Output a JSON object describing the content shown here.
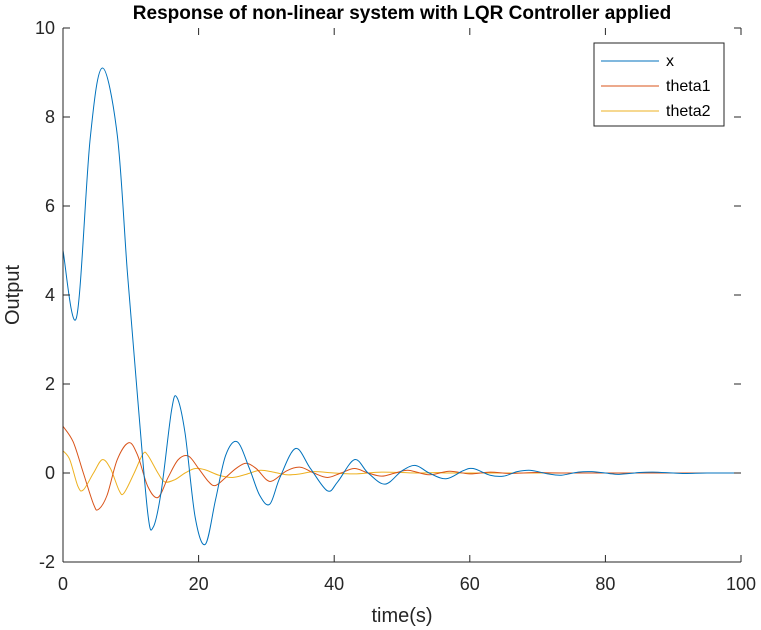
{
  "chart_data": {
    "type": "line",
    "title": "Response of non-linear system with LQR Controller applied",
    "xlabel": "time(s)",
    "ylabel": "Output",
    "xlim": [
      0,
      100
    ],
    "ylim": [
      -2,
      10
    ],
    "xticks": [
      "0",
      "20",
      "40",
      "60",
      "80",
      "100"
    ],
    "yticks": [
      "-2",
      "0",
      "2",
      "4",
      "6",
      "8",
      "10"
    ],
    "grid": false,
    "legend_position": "top-right",
    "series": [
      {
        "name": "x",
        "color": "#0072BD",
        "points": [
          [
            0,
            5.0
          ],
          [
            2,
            3.5
          ],
          [
            4,
            7.5
          ],
          [
            5.8,
            9.1
          ],
          [
            8,
            7.6
          ],
          [
            9.5,
            4.5
          ],
          [
            11,
            1.7
          ],
          [
            12.5,
            -0.9
          ],
          [
            13.3,
            -1.22
          ],
          [
            14.5,
            -0.4
          ],
          [
            16,
            1.4
          ],
          [
            16.8,
            1.7
          ],
          [
            18,
            0.9
          ],
          [
            19.5,
            -1.0
          ],
          [
            21,
            -1.6
          ],
          [
            22.5,
            -0.6
          ],
          [
            24,
            0.4
          ],
          [
            25.7,
            0.7
          ],
          [
            27.5,
            0.1
          ],
          [
            29,
            -0.5
          ],
          [
            30.5,
            -0.7
          ],
          [
            32,
            -0.1
          ],
          [
            34.3,
            0.55
          ],
          [
            36.5,
            0.1
          ],
          [
            39,
            -0.4
          ],
          [
            40.5,
            -0.2
          ],
          [
            43,
            0.3
          ],
          [
            45,
            0.0
          ],
          [
            47.5,
            -0.25
          ],
          [
            50,
            0.05
          ],
          [
            52,
            0.17
          ],
          [
            54,
            0.0
          ],
          [
            56.5,
            -0.13
          ],
          [
            59,
            0.05
          ],
          [
            60.5,
            0.1
          ],
          [
            63,
            -0.05
          ],
          [
            65,
            -0.07
          ],
          [
            67,
            0.03
          ],
          [
            69,
            0.06
          ],
          [
            71.5,
            -0.02
          ],
          [
            73.5,
            -0.05
          ],
          [
            76,
            0.02
          ],
          [
            78,
            0.03
          ],
          [
            80.5,
            -0.01
          ],
          [
            82,
            -0.03
          ],
          [
            85,
            0.01
          ],
          [
            87,
            0.02
          ],
          [
            90,
            0.0
          ],
          [
            92,
            -0.01
          ],
          [
            95,
            0.0
          ],
          [
            100,
            0.0
          ]
        ]
      },
      {
        "name": "theta1",
        "color": "#D95319",
        "points": [
          [
            0,
            1.05
          ],
          [
            1.5,
            0.7
          ],
          [
            3,
            0.0
          ],
          [
            4.5,
            -0.7
          ],
          [
            5.2,
            -0.82
          ],
          [
            6.5,
            -0.5
          ],
          [
            8,
            0.3
          ],
          [
            9.7,
            0.68
          ],
          [
            11,
            0.4
          ],
          [
            12.5,
            -0.3
          ],
          [
            14,
            -0.55
          ],
          [
            15.5,
            -0.1
          ],
          [
            17,
            0.3
          ],
          [
            18.5,
            0.38
          ],
          [
            20,
            0.1
          ],
          [
            21.5,
            -0.2
          ],
          [
            22.5,
            -0.28
          ],
          [
            24,
            -0.1
          ],
          [
            25.5,
            0.1
          ],
          [
            27,
            0.22
          ],
          [
            28.5,
            0.1
          ],
          [
            30,
            -0.15
          ],
          [
            31,
            -0.17
          ],
          [
            33,
            0.05
          ],
          [
            35,
            0.13
          ],
          [
            37,
            0.0
          ],
          [
            39,
            -0.1
          ],
          [
            41,
            0.0
          ],
          [
            43,
            0.1
          ],
          [
            45,
            0.0
          ],
          [
            47,
            -0.07
          ],
          [
            49,
            0.0
          ],
          [
            51,
            0.06
          ],
          [
            54,
            -0.04
          ],
          [
            57,
            0.04
          ],
          [
            60,
            -0.02
          ],
          [
            63,
            0.02
          ],
          [
            66,
            -0.01
          ],
          [
            70,
            0.01
          ],
          [
            75,
            0.0
          ],
          [
            100,
            0.0
          ]
        ]
      },
      {
        "name": "theta2",
        "color": "#EDB120",
        "points": [
          [
            0,
            0.5
          ],
          [
            1,
            0.3
          ],
          [
            2.2,
            -0.3
          ],
          [
            3,
            -0.38
          ],
          [
            4.5,
            0.0
          ],
          [
            5.8,
            0.3
          ],
          [
            7,
            0.1
          ],
          [
            8.3,
            -0.4
          ],
          [
            9,
            -0.45
          ],
          [
            10.5,
            0.0
          ],
          [
            11.8,
            0.43
          ],
          [
            12.5,
            0.4
          ],
          [
            14,
            0.0
          ],
          [
            15,
            -0.2
          ],
          [
            16.5,
            -0.15
          ],
          [
            18,
            0.0
          ],
          [
            19.5,
            0.1
          ],
          [
            21,
            0.07
          ],
          [
            23,
            -0.05
          ],
          [
            25,
            -0.1
          ],
          [
            27,
            -0.03
          ],
          [
            29,
            0.06
          ],
          [
            31,
            0.02
          ],
          [
            33,
            -0.04
          ],
          [
            35,
            -0.02
          ],
          [
            37,
            0.03
          ],
          [
            40,
            0.0
          ],
          [
            43,
            -0.02
          ],
          [
            47,
            0.02
          ],
          [
            52,
            0.0
          ],
          [
            56,
            0.01
          ],
          [
            60,
            0.0
          ],
          [
            100,
            0.0
          ]
        ]
      }
    ]
  }
}
